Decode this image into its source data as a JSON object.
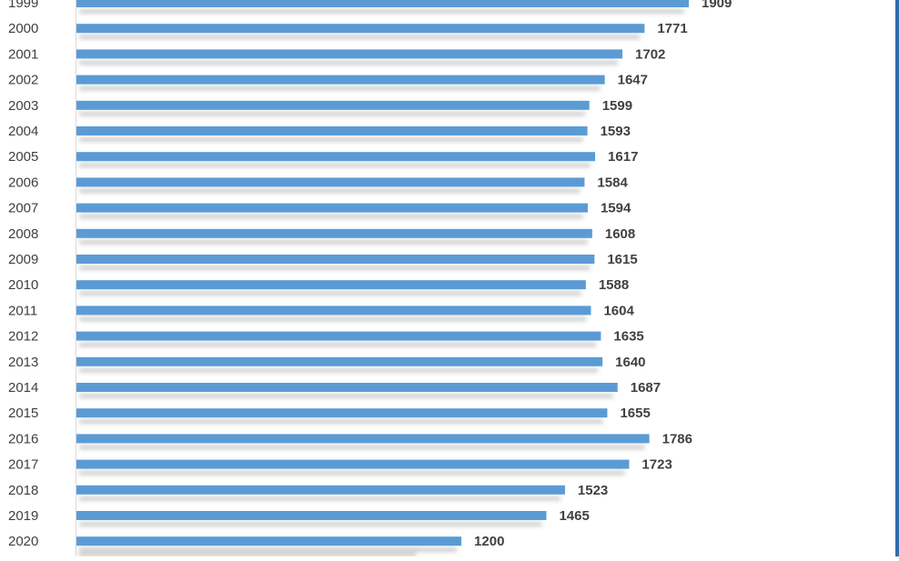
{
  "chart_data": {
    "type": "bar",
    "orientation": "horizontal",
    "categories": [
      "1999",
      "2000",
      "2001",
      "2002",
      "2003",
      "2004",
      "2005",
      "2006",
      "2007",
      "2008",
      "2009",
      "2010",
      "2011",
      "2012",
      "2013",
      "2014",
      "2015",
      "2016",
      "2017",
      "2018",
      "2019",
      "2020"
    ],
    "series": [
      {
        "values": [
          1909,
          1771,
          1702,
          1647,
          1599,
          1593,
          1617,
          1584,
          1594,
          1608,
          1615,
          1588,
          1604,
          1635,
          1640,
          1687,
          1655,
          1786,
          1723,
          1523,
          1465,
          1200
        ],
        "color": "#5b9bd5"
      }
    ],
    "data_labels": true,
    "grid": false,
    "legend": "none"
  },
  "colors": {
    "bar": "#5b9bd5",
    "shadow": "#c8c8c8",
    "text": "#404040",
    "axis_line": "#d9d9d9",
    "frame": "#2f6db0"
  }
}
